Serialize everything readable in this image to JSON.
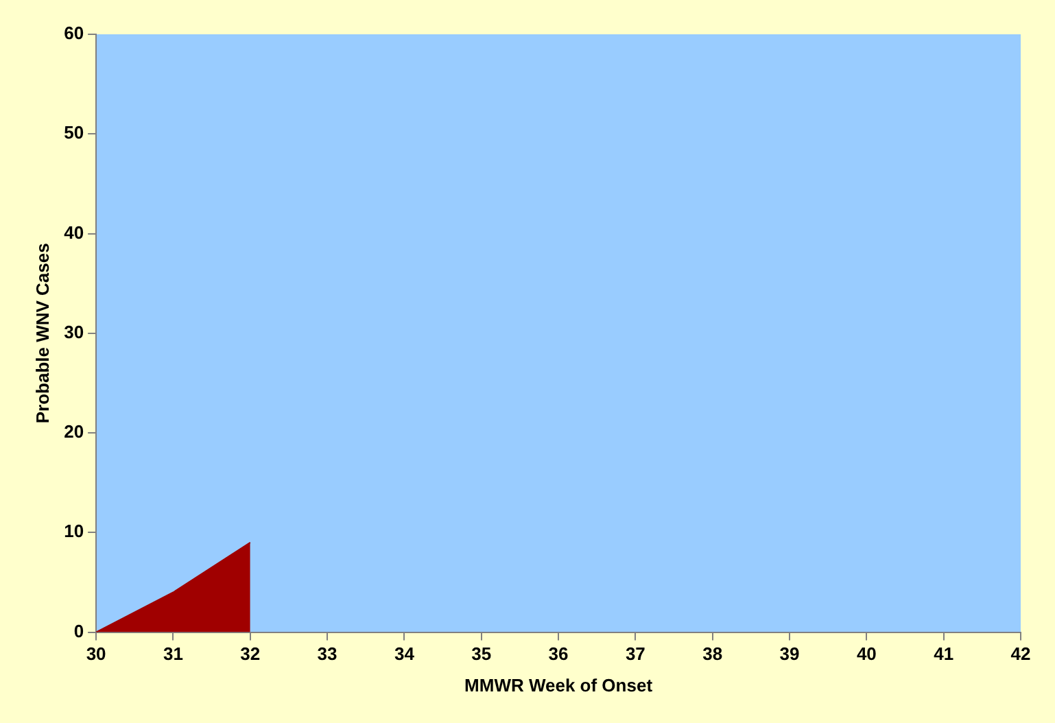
{
  "chart_data": {
    "type": "area",
    "xlabel": "MMWR Week of Onset",
    "ylabel": "Probable WNV Cases",
    "x": [
      30,
      31,
      32
    ],
    "series": [
      {
        "color": "#a00000",
        "values": [
          0,
          4,
          9
        ]
      }
    ],
    "xlim": [
      30,
      42
    ],
    "xticks": [
      30,
      31,
      32,
      33,
      34,
      35,
      36,
      37,
      38,
      39,
      40,
      41,
      42
    ],
    "ylim": [
      0,
      60
    ],
    "yticks": [
      0,
      10,
      20,
      30,
      40,
      50,
      60
    ],
    "grid": false,
    "legend": false
  }
}
